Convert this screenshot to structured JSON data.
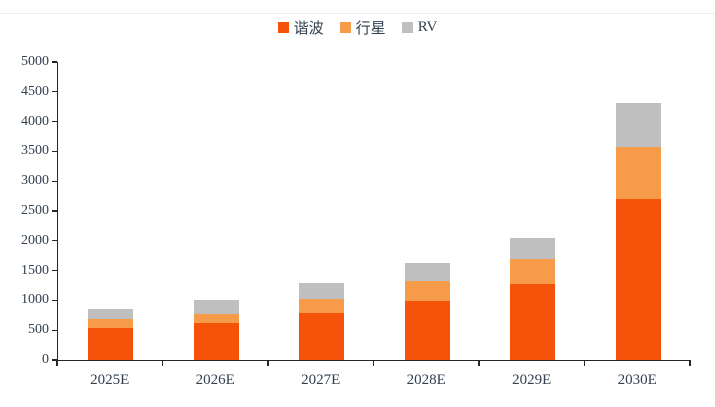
{
  "chart_data": {
    "type": "bar",
    "stacked": true,
    "title": "",
    "xlabel": "",
    "ylabel": "",
    "categories": [
      "2025E",
      "2026E",
      "2027E",
      "2028E",
      "2029E",
      "2030E"
    ],
    "series": [
      {
        "name": "谐波",
        "color": "#F5530A",
        "values": [
          530,
          620,
          790,
          990,
          1280,
          2700
        ]
      },
      {
        "name": "行星",
        "color": "#F59B4A",
        "values": [
          150,
          160,
          240,
          330,
          410,
          880
        ]
      },
      {
        "name": "RV",
        "color": "#BFBFBF",
        "values": [
          180,
          220,
          260,
          300,
          360,
          740
        ]
      }
    ],
    "totals": [
      860,
      1000,
      1290,
      1620,
      2050,
      4320
    ],
    "ylim": [
      0,
      5000
    ],
    "y_tick_step": 500,
    "y_ticks": [
      "0",
      "500",
      "1000",
      "1500",
      "2000",
      "2500",
      "3000",
      "3500",
      "4000",
      "4500",
      "5000"
    ],
    "grid": false,
    "legend_position": "top-center"
  },
  "style": {
    "text_color": "#32404F",
    "axis_color": "#262626",
    "divider_color": "#ececec",
    "background": "#ffffff"
  }
}
